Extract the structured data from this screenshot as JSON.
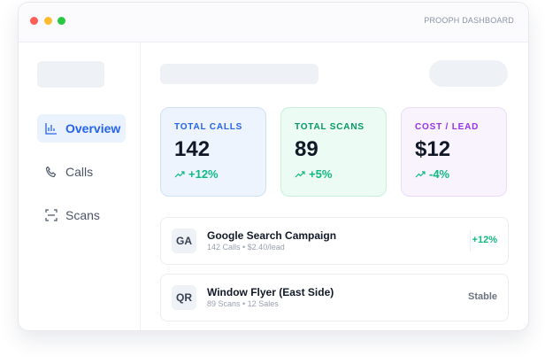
{
  "header": {
    "title": "PROOPH DASHBOARD"
  },
  "nav": [
    {
      "label": "Overview"
    },
    {
      "label": "Calls"
    },
    {
      "label": "Scans"
    }
  ],
  "cards": [
    {
      "label": "TOTAL CALLS",
      "value": "142",
      "change": "+12%"
    },
    {
      "label": "TOTAL SCANS",
      "value": "89",
      "change": "+5%"
    },
    {
      "label": "COST / LEAD",
      "value": "$12",
      "change": "-4%"
    }
  ],
  "campaigns": [
    {
      "badge": "GA",
      "title": "Google Search Campaign",
      "subtitle": "142 Calls • $2.40/lead",
      "status": "+12%"
    },
    {
      "badge": "QR",
      "title": "Window Flyer (East Side)",
      "subtitle": "89 Scans • 12 Sales",
      "status": "Stable"
    }
  ]
}
